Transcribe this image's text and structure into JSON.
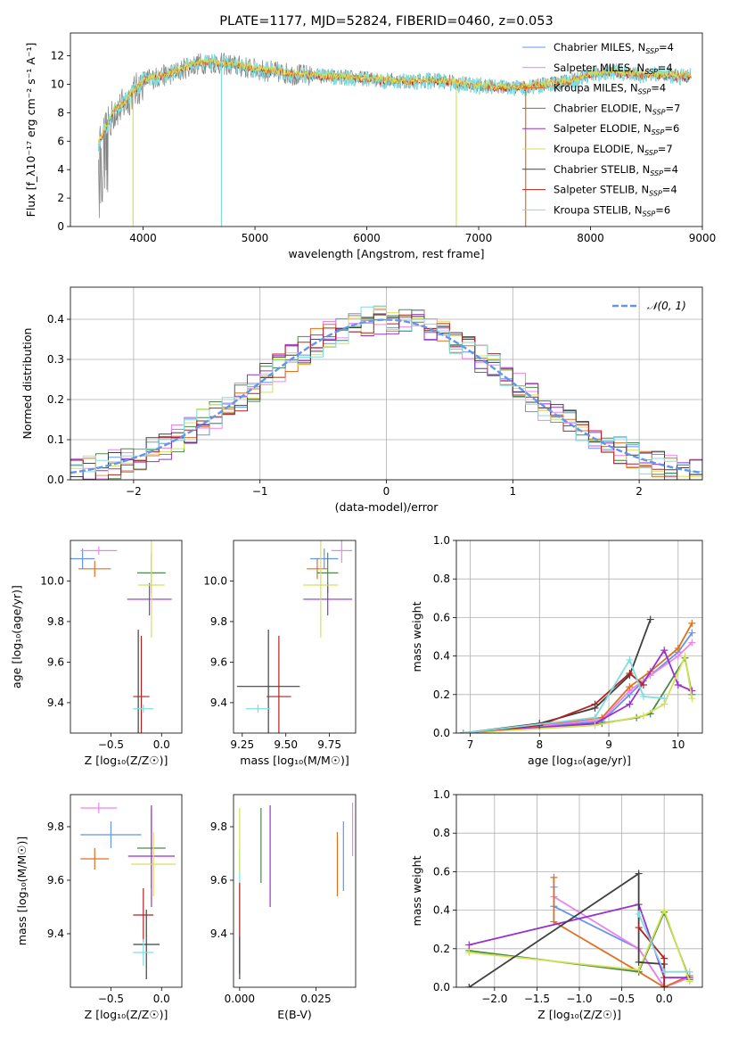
{
  "colors": {
    "chabrier_miles": "#6495ed",
    "salpeter_miles": "#ee82ee",
    "kroupa_miles": "#e07020",
    "chabrier_elodie": "#4a8a4a",
    "salpeter_elodie": "#9932cc",
    "kroupa_elodie": "#d4e157",
    "chabrier_stelib": "#404040",
    "salpeter_stelib": "#b22222",
    "kroupa_stelib": "#7fdde0",
    "observed": "#808080",
    "gaussian": "#6495ed"
  },
  "chart_data": [
    {
      "id": "spectrum",
      "type": "line",
      "title": "PLATE=1177, MJD=52824, FIBERID=0460, z=0.053",
      "xlabel": "wavelength [Angstrom, rest frame]",
      "ylabel": "Flux [f_λ10⁻¹⁷ erg cm⁻² s⁻¹ A⁻¹]",
      "xlim": [
        3350,
        9000
      ],
      "ylim": [
        0,
        13.6
      ],
      "xticks": [
        4000,
        5000,
        6000,
        7000,
        8000,
        9000
      ],
      "yticks": [
        0,
        2,
        4,
        6,
        8,
        10,
        12
      ],
      "legend_position": "right",
      "legend": [
        {
          "label": "Chabrier MILES, N",
          "sub": "SSP",
          "val": "=4",
          "color_key": "chabrier_miles"
        },
        {
          "label": "Salpeter MILES, N",
          "sub": "SSP",
          "val": "=4",
          "color_key": "salpeter_miles"
        },
        {
          "label": "Kroupa MILES, N",
          "sub": "SSP",
          "val": "=4",
          "color_key": "kroupa_miles"
        },
        {
          "label": "Chabrier ELODIE, N",
          "sub": "SSP",
          "val": "=7",
          "color_key": "chabrier_elodie"
        },
        {
          "label": "Salpeter ELODIE, N",
          "sub": "SSP",
          "val": "=6",
          "color_key": "salpeter_elodie"
        },
        {
          "label": "Kroupa ELODIE, N",
          "sub": "SSP",
          "val": "=7",
          "color_key": "kroupa_elodie"
        },
        {
          "label": "Chabrier STELIB, N",
          "sub": "SSP",
          "val": "=4",
          "color_key": "chabrier_stelib"
        },
        {
          "label": "Salpeter STELIB, N",
          "sub": "SSP",
          "val": "=4",
          "color_key": "salpeter_stelib"
        },
        {
          "label": "Kroupa STELIB, N",
          "sub": "SSP",
          "val": "=6",
          "color_key": "kroupa_stelib"
        }
      ],
      "envelope": {
        "x": [
          3600,
          3650,
          3700,
          3750,
          3800,
          3850,
          3900,
          3950,
          4000,
          4100,
          4200,
          4300,
          4400,
          4500,
          4600,
          4700,
          4800,
          5000,
          5200,
          5400,
          5600,
          5800,
          6000,
          6200,
          6400,
          6600,
          6800,
          7000,
          7200,
          7400,
          7600,
          7800,
          8000,
          8200,
          8400,
          8600,
          8800
        ],
        "y": [
          6.0,
          6.8,
          7.6,
          8.4,
          8.6,
          9.0,
          9.6,
          9.9,
          10.4,
          10.6,
          10.8,
          11.0,
          11.4,
          11.6,
          11.7,
          11.6,
          11.5,
          11.2,
          11.0,
          10.8,
          10.7,
          10.6,
          10.5,
          10.4,
          10.3,
          10.4,
          10.2,
          10.0,
          9.9,
          9.9,
          10.1,
          10.3,
          10.8,
          11.0,
          10.8,
          10.8,
          10.7
        ]
      },
      "dips": [
        {
          "x": 3910,
          "y": 0.0,
          "color_key": "kroupa_elodie"
        },
        {
          "x": 4700,
          "y": 0.0,
          "color_key": "kroupa_stelib"
        },
        {
          "x": 6800,
          "y": 0.0,
          "color_key": "kroupa_elodie"
        },
        {
          "x": 7420,
          "y": 0.0,
          "color_key": "kroupa_miles"
        }
      ]
    },
    {
      "id": "residual_histogram",
      "type": "line",
      "xlabel": "(data-model)/error",
      "ylabel": "Normed distribution",
      "xlim": [
        -2.5,
        2.5
      ],
      "ylim": [
        0,
        0.48
      ],
      "xticks": [
        -2,
        -1,
        0,
        1,
        2
      ],
      "yticks": [
        0.0,
        0.1,
        0.2,
        0.3,
        0.4
      ],
      "legend": [
        {
          "label": "𝒩(0, 1)",
          "color_key": "gaussian"
        }
      ],
      "legend_position": "top-right",
      "bin_width": 0.1,
      "gaussian": {
        "mean": 0,
        "sigma": 1
      }
    },
    {
      "id": "age_vs_metallicity",
      "type": "scatter",
      "xlabel": "Z [log₁₀(Z/Z☉)]",
      "ylabel": "age  [log₁₀(age/yr)]",
      "xlim": [
        -0.9,
        0.2
      ],
      "ylim": [
        9.25,
        10.2
      ],
      "xticks": [
        -0.5,
        0.0
      ],
      "yticks": [
        9.4,
        9.6,
        9.8,
        10.0
      ],
      "points": [
        {
          "x": -0.78,
          "y": 10.11,
          "xerr": 0.12,
          "yerr": 0.05,
          "color_key": "chabrier_miles"
        },
        {
          "x": -0.62,
          "y": 10.15,
          "xerr": 0.18,
          "yerr": 0.02,
          "color_key": "salpeter_miles"
        },
        {
          "x": -0.66,
          "y": 10.06,
          "xerr": 0.16,
          "yerr": 0.04,
          "color_key": "kroupa_miles"
        },
        {
          "x": -0.1,
          "y": 10.04,
          "xerr": 0.14,
          "yerr": 0.1,
          "color_key": "chabrier_elodie"
        },
        {
          "x": -0.12,
          "y": 9.91,
          "xerr": 0.22,
          "yerr": 0.08,
          "color_key": "salpeter_elodie"
        },
        {
          "x": -0.1,
          "y": 9.98,
          "xerr": 0.13,
          "yerr": 0.26,
          "color_key": "kroupa_elodie"
        },
        {
          "x": -0.23,
          "y": 9.48,
          "xerr": 0.0,
          "yerr": 0.28,
          "color_key": "chabrier_stelib"
        },
        {
          "x": -0.2,
          "y": 9.43,
          "xerr": 0.08,
          "yerr": 0.3,
          "color_key": "salpeter_stelib"
        },
        {
          "x": -0.18,
          "y": 9.37,
          "xerr": 0.1,
          "yerr": 0.02,
          "color_key": "kroupa_stelib"
        }
      ]
    },
    {
      "id": "age_vs_mass",
      "type": "scatter",
      "xlabel": "mass [log₁₀(M/M☉)]",
      "ylabel": "",
      "xlim": [
        9.2,
        9.9
      ],
      "ylim": [
        9.25,
        10.2
      ],
      "xticks": [
        9.25,
        9.5,
        9.75
      ],
      "yticks": [
        9.4,
        9.6,
        9.8,
        10.0
      ],
      "points": [
        {
          "x": 9.72,
          "y": 10.11,
          "xerr": 0.08,
          "yerr": 0.05,
          "color_key": "chabrier_miles"
        },
        {
          "x": 9.82,
          "y": 10.15,
          "xerr": 0.06,
          "yerr": 0.06,
          "color_key": "salpeter_miles"
        },
        {
          "x": 9.68,
          "y": 10.06,
          "xerr": 0.06,
          "yerr": 0.05,
          "color_key": "kroupa_miles"
        },
        {
          "x": 9.74,
          "y": 10.04,
          "xerr": 0.06,
          "yerr": 0.1,
          "color_key": "chabrier_elodie"
        },
        {
          "x": 9.74,
          "y": 9.91,
          "xerr": 0.14,
          "yerr": 0.08,
          "color_key": "salpeter_elodie"
        },
        {
          "x": 9.7,
          "y": 9.98,
          "xerr": 0.1,
          "yerr": 0.26,
          "color_key": "kroupa_elodie"
        },
        {
          "x": 9.4,
          "y": 9.48,
          "xerr": 0.18,
          "yerr": 0.28,
          "color_key": "chabrier_stelib"
        },
        {
          "x": 9.46,
          "y": 9.43,
          "xerr": 0.07,
          "yerr": 0.3,
          "color_key": "salpeter_stelib"
        },
        {
          "x": 9.34,
          "y": 9.37,
          "xerr": 0.07,
          "yerr": 0.02,
          "color_key": "kroupa_stelib"
        }
      ]
    },
    {
      "id": "mass_weight_vs_age",
      "type": "line",
      "xlabel": "age  [log₁₀(age/yr)]",
      "ylabel": "mass weight",
      "xlim": [
        6.8,
        10.35
      ],
      "ylim": [
        0,
        1.0
      ],
      "xticks": [
        7,
        8,
        9,
        10
      ],
      "yticks": [
        0.0,
        0.2,
        0.4,
        0.6,
        0.8,
        1.0
      ],
      "series": [
        {
          "color_key": "chabrier_miles",
          "x": [
            6.9,
            8.9,
            9.3,
            9.5,
            10.0,
            10.2
          ],
          "y": [
            0.0,
            0.06,
            0.2,
            0.27,
            0.42,
            0.52
          ]
        },
        {
          "color_key": "salpeter_miles",
          "x": [
            6.9,
            8.9,
            9.3,
            9.6,
            10.0,
            10.2
          ],
          "y": [
            0.0,
            0.07,
            0.22,
            0.3,
            0.4,
            0.47
          ]
        },
        {
          "color_key": "kroupa_miles",
          "x": [
            6.9,
            8.9,
            9.3,
            9.6,
            10.0,
            10.2
          ],
          "y": [
            0.0,
            0.08,
            0.24,
            0.32,
            0.44,
            0.57
          ]
        },
        {
          "color_key": "chabrier_elodie",
          "x": [
            6.9,
            8.9,
            9.4,
            9.6,
            10.1,
            10.2
          ],
          "y": [
            0.0,
            0.05,
            0.08,
            0.1,
            0.39,
            0.2
          ]
        },
        {
          "color_key": "salpeter_elodie",
          "x": [
            6.9,
            8.8,
            9.3,
            9.8,
            10.0,
            10.2
          ],
          "y": [
            0.0,
            0.05,
            0.15,
            0.43,
            0.25,
            0.22
          ]
        },
        {
          "color_key": "kroupa_elodie",
          "x": [
            6.9,
            8.8,
            9.5,
            9.8,
            10.1,
            10.2
          ],
          "y": [
            0.0,
            0.04,
            0.09,
            0.15,
            0.4,
            0.18
          ]
        },
        {
          "color_key": "chabrier_stelib",
          "x": [
            6.9,
            8.0,
            8.8,
            9.3,
            9.6
          ],
          "y": [
            0.0,
            0.05,
            0.13,
            0.3,
            0.59
          ]
        },
        {
          "color_key": "salpeter_stelib",
          "x": [
            6.9,
            8.0,
            8.8,
            9.3,
            9.5
          ],
          "y": [
            0.0,
            0.04,
            0.15,
            0.31,
            0.25
          ]
        },
        {
          "color_key": "kroupa_stelib",
          "x": [
            6.9,
            8.8,
            9.3,
            9.5,
            9.8
          ],
          "y": [
            0.0,
            0.08,
            0.38,
            0.19,
            0.18
          ]
        }
      ]
    },
    {
      "id": "mass_vs_metallicity",
      "type": "scatter",
      "xlabel": "Z [log₁₀(Z/Z☉)]",
      "ylabel": "mass [log₁₀(M/M☉)]",
      "xlim": [
        -0.9,
        0.2
      ],
      "ylim": [
        9.2,
        9.92
      ],
      "xticks": [
        -0.5,
        0.0
      ],
      "yticks": [
        9.4,
        9.6,
        9.8
      ],
      "points": [
        {
          "x": -0.5,
          "y": 9.77,
          "xerr": 0.3,
          "yerr": 0.05,
          "color_key": "chabrier_miles"
        },
        {
          "x": -0.62,
          "y": 9.87,
          "xerr": 0.18,
          "yerr": 0.02,
          "color_key": "salpeter_miles"
        },
        {
          "x": -0.66,
          "y": 9.68,
          "xerr": 0.14,
          "yerr": 0.04,
          "color_key": "kroupa_miles"
        },
        {
          "x": -0.1,
          "y": 9.72,
          "xerr": 0.14,
          "yerr": 0.15,
          "color_key": "chabrier_elodie"
        },
        {
          "x": -0.1,
          "y": 9.69,
          "xerr": 0.23,
          "yerr": 0.19,
          "color_key": "salpeter_elodie"
        },
        {
          "x": -0.08,
          "y": 9.66,
          "xerr": 0.22,
          "yerr": 0.12,
          "color_key": "kroupa_elodie"
        },
        {
          "x": -0.15,
          "y": 9.36,
          "xerr": 0.13,
          "yerr": 0.13,
          "color_key": "chabrier_stelib"
        },
        {
          "x": -0.18,
          "y": 9.47,
          "xerr": 0.1,
          "yerr": 0.1,
          "color_key": "salpeter_stelib"
        },
        {
          "x": -0.18,
          "y": 9.33,
          "xerr": 0.1,
          "yerr": 0.05,
          "color_key": "kroupa_stelib"
        }
      ]
    },
    {
      "id": "mass_vs_ebv",
      "type": "scatter",
      "xlabel": "E(B-V)",
      "ylabel": "",
      "xlim": [
        -0.002,
        0.038
      ],
      "ylim": [
        9.2,
        9.92
      ],
      "xticks": [
        0.0,
        0.025
      ],
      "xticklabels": [
        "0.000",
        "0.025"
      ],
      "yticks": [
        9.4,
        9.6,
        9.8
      ],
      "points": [
        {
          "x": 0.0,
          "y": 9.5,
          "xerr": 0.0,
          "yerr": 0.22,
          "color_key": "kroupa_stelib"
        },
        {
          "x": 0.0,
          "y": 9.75,
          "xerr": 0.0,
          "yerr": 0.12,
          "color_key": "kroupa_elodie"
        },
        {
          "x": 0.0,
          "y": 9.42,
          "xerr": 0.0,
          "yerr": 0.17,
          "color_key": "salpeter_stelib"
        },
        {
          "x": 0.0,
          "y": 9.31,
          "xerr": 0.0,
          "yerr": 0.08,
          "color_key": "chabrier_stelib"
        },
        {
          "x": 0.007,
          "y": 9.73,
          "xerr": 0.0,
          "yerr": 0.14,
          "color_key": "chabrier_elodie"
        },
        {
          "x": 0.01,
          "y": 9.69,
          "xerr": 0.0,
          "yerr": 0.19,
          "color_key": "salpeter_elodie"
        },
        {
          "x": 0.032,
          "y": 9.66,
          "xerr": 0.0,
          "yerr": 0.12,
          "color_key": "kroupa_miles"
        },
        {
          "x": 0.034,
          "y": 9.69,
          "xerr": 0.0,
          "yerr": 0.13,
          "color_key": "chabrier_miles"
        },
        {
          "x": 0.037,
          "y": 9.79,
          "xerr": 0.0,
          "yerr": 0.1,
          "color_key": "salpeter_miles"
        }
      ]
    },
    {
      "id": "mass_weight_vs_metallicity",
      "type": "line",
      "xlabel": "Z [log₁₀(Z/Z☉)]",
      "ylabel": "mass weight",
      "xlim": [
        -2.45,
        0.45
      ],
      "ylim": [
        0,
        1.0
      ],
      "xticks": [
        -2.0,
        -1.5,
        -1.0,
        -0.5,
        0.0
      ],
      "yticks": [
        0.0,
        0.2,
        0.4,
        0.6,
        0.8,
        1.0
      ],
      "series": [
        {
          "color_key": "chabrier_miles",
          "x": [
            -1.3,
            -1.3,
            -0.3,
            0.0,
            0.3
          ],
          "y": [
            0.52,
            0.42,
            0.2,
            0.0,
            0.06
          ]
        },
        {
          "color_key": "salpeter_miles",
          "x": [
            -1.3,
            -0.3,
            0.0,
            0.3
          ],
          "y": [
            0.47,
            0.2,
            0.0,
            0.05
          ]
        },
        {
          "color_key": "kroupa_miles",
          "x": [
            -1.3,
            -1.3,
            -0.3,
            0.0,
            0.3
          ],
          "y": [
            0.57,
            0.34,
            0.08,
            0.0,
            0.06
          ]
        },
        {
          "color_key": "chabrier_elodie",
          "x": [
            -2.3,
            -0.3,
            0.0,
            0.3
          ],
          "y": [
            0.19,
            0.08,
            0.39,
            0.04
          ]
        },
        {
          "color_key": "salpeter_elodie",
          "x": [
            -2.3,
            -0.3,
            0.0,
            0.3
          ],
          "y": [
            0.22,
            0.43,
            0.05,
            0.05
          ]
        },
        {
          "color_key": "kroupa_elodie",
          "x": [
            -2.3,
            -0.3,
            0.0,
            0.3
          ],
          "y": [
            0.18,
            0.09,
            0.4,
            0.03
          ]
        },
        {
          "color_key": "chabrier_stelib",
          "x": [
            -2.3,
            -0.3,
            -0.3,
            0.0,
            0.0
          ],
          "y": [
            0.0,
            0.59,
            0.13,
            0.12,
            0.0
          ]
        },
        {
          "color_key": "salpeter_stelib",
          "x": [
            -0.3,
            0.0,
            0.0
          ],
          "y": [
            0.31,
            0.15,
            0.0
          ]
        },
        {
          "color_key": "kroupa_stelib",
          "x": [
            -0.3,
            0.0,
            0.3
          ],
          "y": [
            0.38,
            0.08,
            0.08
          ]
        }
      ]
    }
  ]
}
